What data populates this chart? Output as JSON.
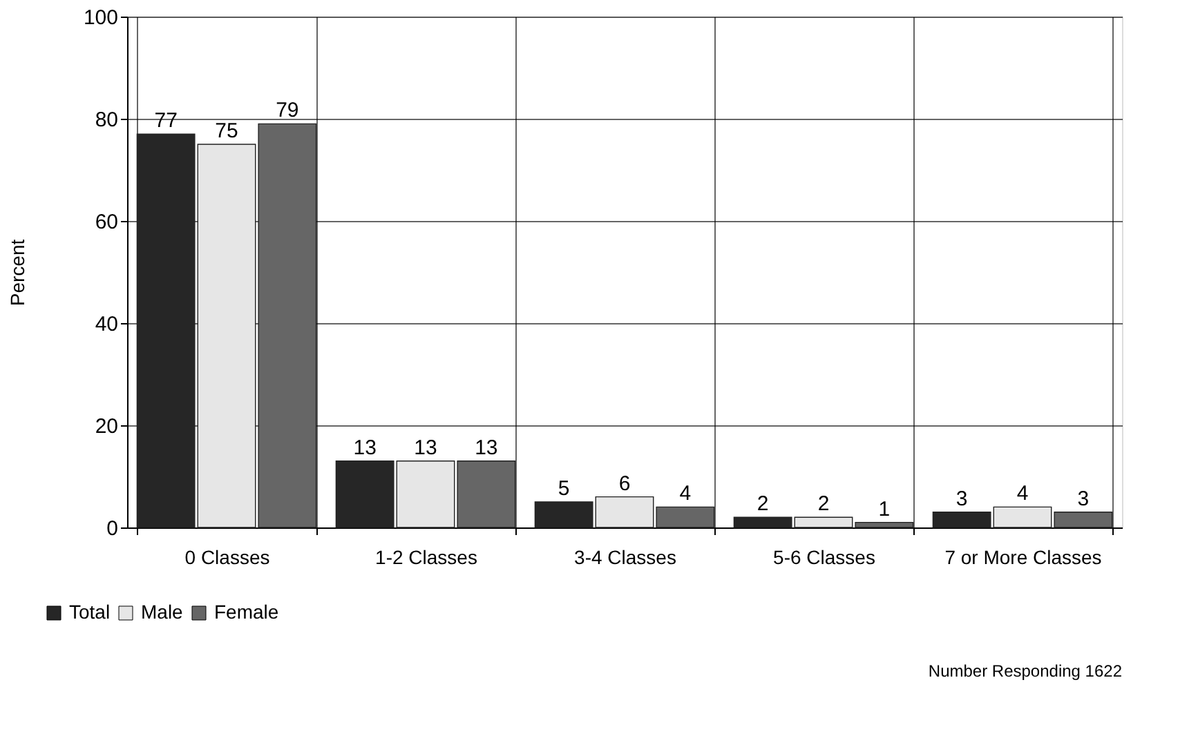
{
  "chart_data": {
    "type": "bar",
    "ylabel": "Percent",
    "categories": [
      "0 Classes",
      "1-2 Classes",
      "3-4 Classes",
      "5-6 Classes",
      "7 or More Classes"
    ],
    "series": [
      {
        "name": "Total",
        "color": "#262626",
        "values": [
          77,
          13,
          5,
          2,
          3
        ]
      },
      {
        "name": "Male",
        "color": "#e6e6e6",
        "values": [
          75,
          13,
          6,
          2,
          4
        ]
      },
      {
        "name": "Female",
        "color": "#666666",
        "values": [
          79,
          13,
          4,
          1,
          3
        ]
      }
    ],
    "ylim": [
      0,
      100
    ],
    "yticks": [
      0,
      20,
      40,
      60,
      80,
      100
    ],
    "grid": true,
    "legend": "bottom left",
    "data_labels": true,
    "annotations": [
      "Number Responding 1622"
    ]
  }
}
